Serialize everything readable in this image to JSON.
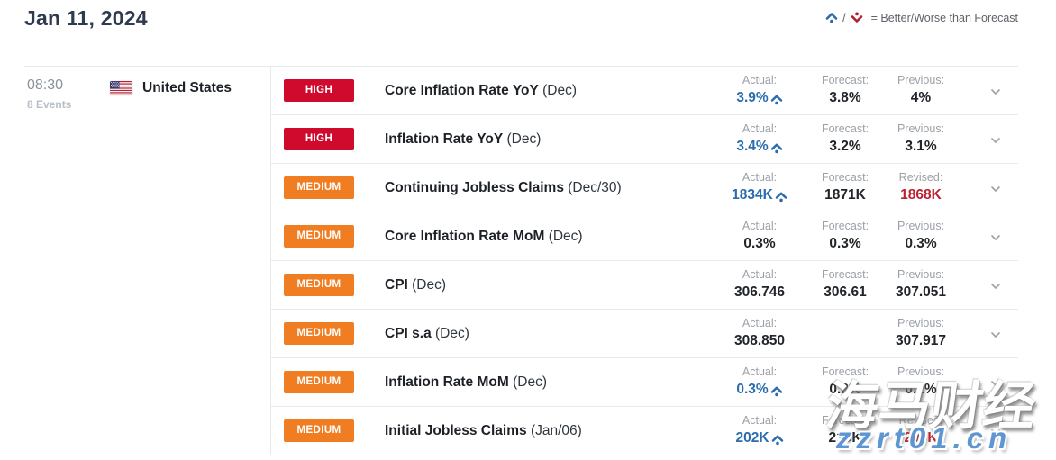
{
  "page": {
    "title": "Jan 11, 2024"
  },
  "legend": {
    "better_icon": "caret-up-dot-icon",
    "worse_icon": "caret-down-dot-icon",
    "separator": "/",
    "text": "= Better/Worse than Forecast"
  },
  "session": {
    "time": "08:30",
    "events_count": "8 Events",
    "country": "United States",
    "flag": "us-flag-icon"
  },
  "impact_levels": {
    "HIGH": {
      "label": "HIGH",
      "color": "#d00a2c"
    },
    "MEDIUM": {
      "label": "MEDIUM",
      "color": "#f07d22"
    }
  },
  "colors": {
    "better_value": "#2b6cad",
    "revised_value": "#bb212e",
    "normal_value": "#212529",
    "cell_label": "#9ba1a8",
    "title": "#2d3a4f"
  },
  "rows": [
    {
      "impact": "HIGH",
      "name": "Core Inflation Rate YoY",
      "period": "(Dec)",
      "cells": [
        {
          "label": "Actual:",
          "value": "3.9%",
          "state": "better"
        },
        {
          "label": "Forecast:",
          "value": "3.8%",
          "state": "normal"
        },
        {
          "label": "Previous:",
          "value": "4%",
          "state": "normal"
        }
      ]
    },
    {
      "impact": "HIGH",
      "name": "Inflation Rate YoY",
      "period": "(Dec)",
      "cells": [
        {
          "label": "Actual:",
          "value": "3.4%",
          "state": "better"
        },
        {
          "label": "Forecast:",
          "value": "3.2%",
          "state": "normal"
        },
        {
          "label": "Previous:",
          "value": "3.1%",
          "state": "normal"
        }
      ]
    },
    {
      "impact": "MEDIUM",
      "name": "Continuing Jobless Claims",
      "period": "(Dec/30)",
      "cells": [
        {
          "label": "Actual:",
          "value": "1834K",
          "state": "better"
        },
        {
          "label": "Forecast:",
          "value": "1871K",
          "state": "normal"
        },
        {
          "label": "Revised:",
          "value": "1868K",
          "state": "revised"
        }
      ]
    },
    {
      "impact": "MEDIUM",
      "name": "Core Inflation Rate MoM",
      "period": "(Dec)",
      "cells": [
        {
          "label": "Actual:",
          "value": "0.3%",
          "state": "normal"
        },
        {
          "label": "Forecast:",
          "value": "0.3%",
          "state": "normal"
        },
        {
          "label": "Previous:",
          "value": "0.3%",
          "state": "normal"
        }
      ]
    },
    {
      "impact": "MEDIUM",
      "name": "CPI",
      "period": "(Dec)",
      "cells": [
        {
          "label": "Actual:",
          "value": "306.746",
          "state": "normal"
        },
        {
          "label": "Forecast:",
          "value": "306.61",
          "state": "normal"
        },
        {
          "label": "Previous:",
          "value": "307.051",
          "state": "normal"
        }
      ]
    },
    {
      "impact": "MEDIUM",
      "name": "CPI s.a",
      "period": "(Dec)",
      "cells": [
        {
          "label": "Actual:",
          "value": "308.850",
          "state": "normal"
        },
        {
          "label": "",
          "value": "",
          "state": "normal"
        },
        {
          "label": "Previous:",
          "value": "307.917",
          "state": "normal"
        }
      ]
    },
    {
      "impact": "MEDIUM",
      "name": "Inflation Rate MoM",
      "period": "(Dec)",
      "cells": [
        {
          "label": "Actual:",
          "value": "0.3%",
          "state": "better"
        },
        {
          "label": "Forecast:",
          "value": "0.2%",
          "state": "normal"
        },
        {
          "label": "Previous:",
          "value": "0.1%",
          "state": "normal"
        }
      ]
    },
    {
      "impact": "MEDIUM",
      "name": "Initial Jobless Claims",
      "period": "(Jan/06)",
      "cells": [
        {
          "label": "Actual:",
          "value": "202K",
          "state": "better"
        },
        {
          "label": "Forecast:",
          "value": "210K",
          "state": "normal"
        },
        {
          "label": "Revised:",
          "value": "203K",
          "state": "revised"
        }
      ]
    }
  ],
  "watermark": {
    "text_cn": "海马财经",
    "text_url": "zzrt01.cn"
  }
}
